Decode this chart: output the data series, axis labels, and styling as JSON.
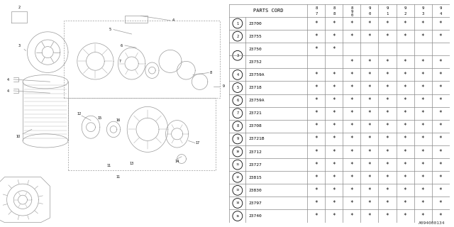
{
  "bg_color": "#ffffff",
  "text_color": "#000000",
  "line_color": "#aaaaaa",
  "watermark": "A094000134",
  "table": {
    "rows": [
      {
        "num": "1",
        "code": "23700",
        "stars": [
          1,
          1,
          1,
          1,
          1,
          1,
          1,
          1
        ],
        "group": 1
      },
      {
        "num": "2",
        "code": "23755",
        "stars": [
          1,
          1,
          1,
          1,
          1,
          1,
          1,
          1
        ],
        "group": 2
      },
      {
        "num": "3",
        "code": "23750",
        "stars": [
          1,
          1,
          0,
          0,
          0,
          0,
          0,
          0
        ],
        "group": 3
      },
      {
        "num": "3",
        "code": "23752",
        "stars": [
          0,
          0,
          1,
          1,
          1,
          1,
          1,
          1
        ],
        "group": 3
      },
      {
        "num": "4",
        "code": "23759A",
        "stars": [
          1,
          1,
          1,
          1,
          1,
          1,
          1,
          1
        ],
        "group": 4
      },
      {
        "num": "5",
        "code": "23718",
        "stars": [
          1,
          1,
          1,
          1,
          1,
          1,
          1,
          1
        ],
        "group": 5
      },
      {
        "num": "6",
        "code": "23759A",
        "stars": [
          1,
          1,
          1,
          1,
          1,
          1,
          1,
          1
        ],
        "group": 6
      },
      {
        "num": "7",
        "code": "23721",
        "stars": [
          1,
          1,
          1,
          1,
          1,
          1,
          1,
          1
        ],
        "group": 7
      },
      {
        "num": "8",
        "code": "23708",
        "stars": [
          1,
          1,
          1,
          1,
          1,
          1,
          1,
          1
        ],
        "group": 8
      },
      {
        "num": "9",
        "code": "23721B",
        "stars": [
          1,
          1,
          1,
          1,
          1,
          1,
          1,
          1
        ],
        "group": 9
      },
      {
        "num": "10",
        "code": "23712",
        "stars": [
          1,
          1,
          1,
          1,
          1,
          1,
          1,
          1
        ],
        "group": 10
      },
      {
        "num": "11",
        "code": "23727",
        "stars": [
          1,
          1,
          1,
          1,
          1,
          1,
          1,
          1
        ],
        "group": 11
      },
      {
        "num": "12",
        "code": "23815",
        "stars": [
          1,
          1,
          1,
          1,
          1,
          1,
          1,
          1
        ],
        "group": 12
      },
      {
        "num": "13",
        "code": "23830",
        "stars": [
          1,
          1,
          1,
          1,
          1,
          1,
          1,
          1
        ],
        "group": 13
      },
      {
        "num": "14",
        "code": "23797",
        "stars": [
          1,
          1,
          1,
          1,
          1,
          1,
          1,
          1
        ],
        "group": 14
      },
      {
        "num": "15",
        "code": "23740",
        "stars": [
          1,
          1,
          1,
          1,
          1,
          1,
          1,
          1
        ],
        "group": 15
      }
    ],
    "year_top": [
      "8",
      "8",
      "8",
      "9",
      "9",
      "9",
      "9",
      "9"
    ],
    "year_bot": [
      "7",
      "8",
      "9\n0",
      "0",
      "1",
      "2",
      "3",
      "4"
    ]
  }
}
